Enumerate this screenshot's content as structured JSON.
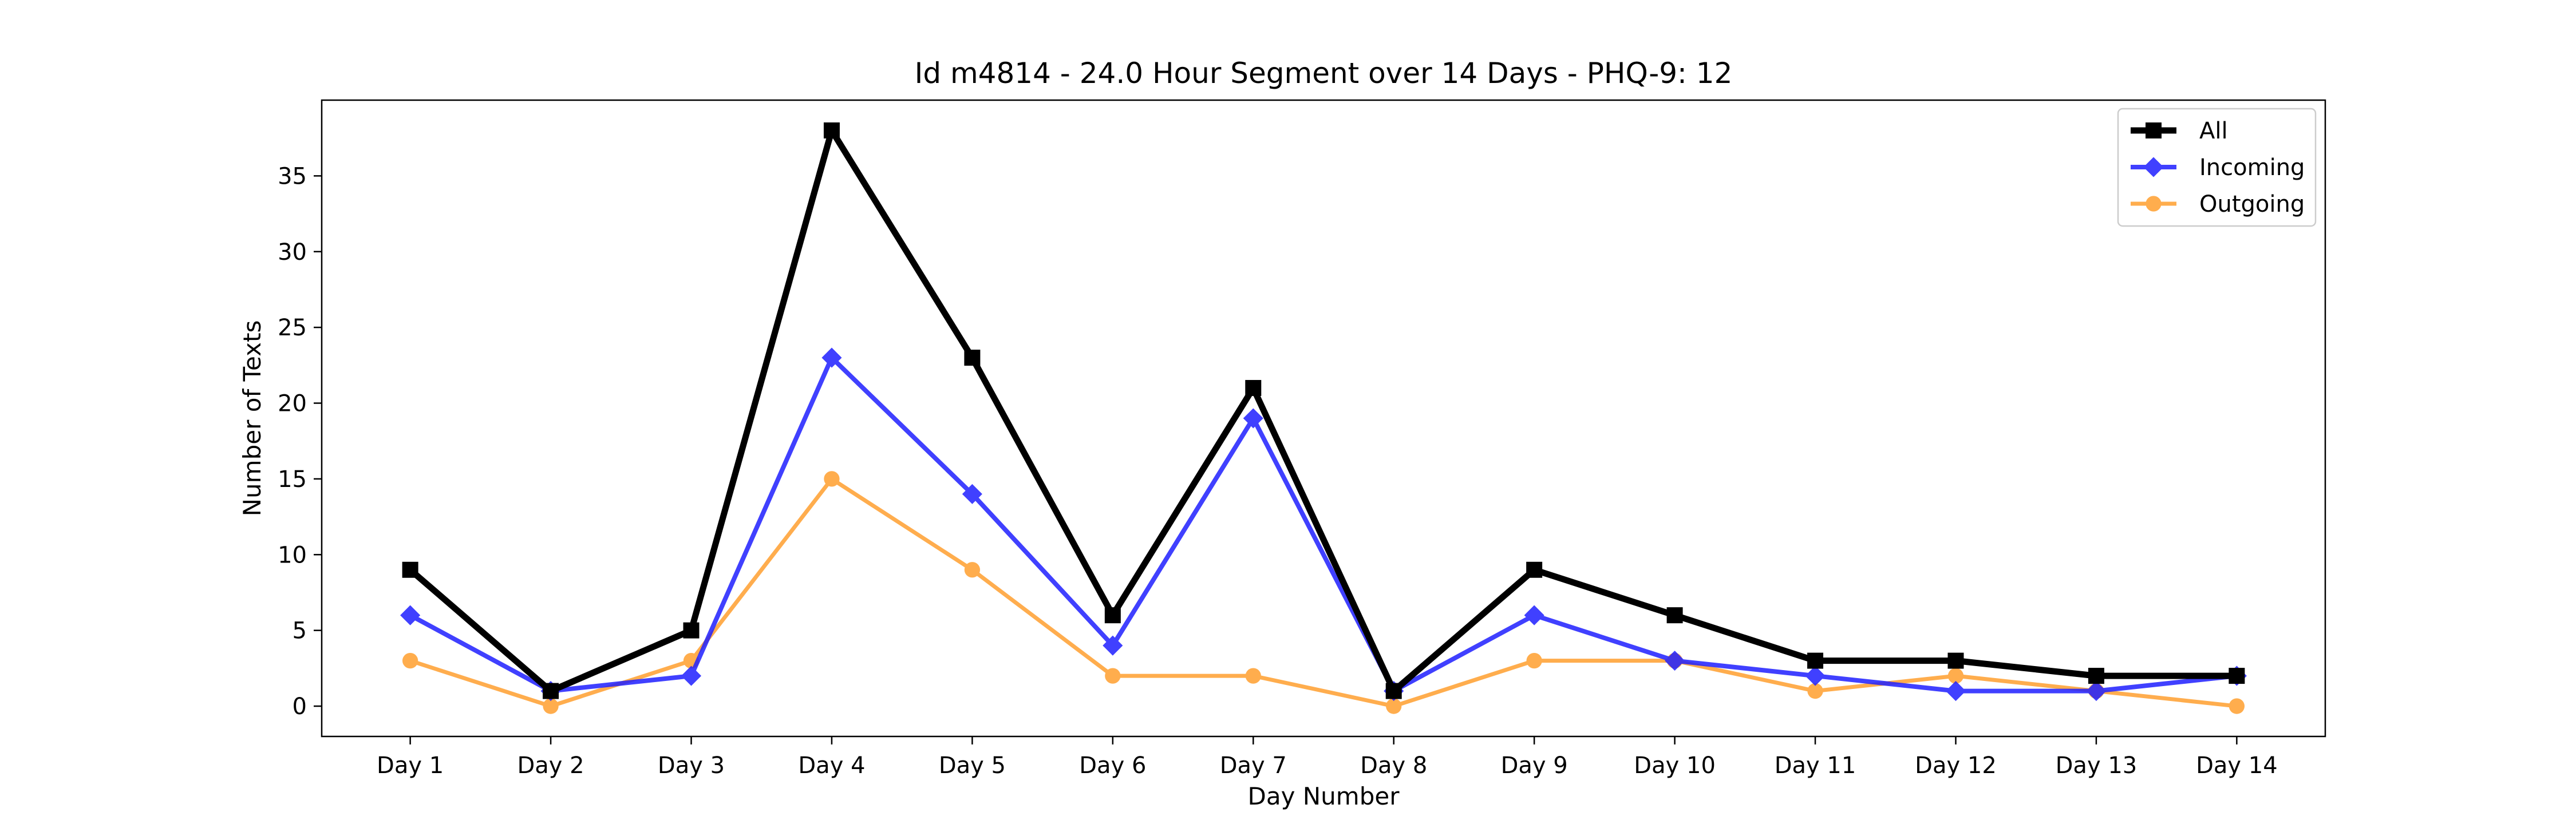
{
  "chart_data": {
    "type": "line",
    "title": "Id m4814 - 24.0 Hour Segment over 14 Days - PHQ-9: 12",
    "xlabel": "Day Number",
    "ylabel": "Number of Texts",
    "categories": [
      "Day 1",
      "Day 2",
      "Day 3",
      "Day 4",
      "Day 5",
      "Day 6",
      "Day 7",
      "Day 8",
      "Day 9",
      "Day 10",
      "Day 11",
      "Day 12",
      "Day 13",
      "Day 14"
    ],
    "ylim": [
      -2,
      40
    ],
    "yticks": [
      0,
      5,
      10,
      15,
      20,
      25,
      30,
      35
    ],
    "grid": false,
    "legend_position": "top-right",
    "series": [
      {
        "name": "All",
        "color": "#000000",
        "marker": "square",
        "values": [
          9,
          1,
          5,
          38,
          23,
          6,
          21,
          1,
          9,
          6,
          3,
          3,
          2,
          2
        ]
      },
      {
        "name": "Incoming",
        "color": "#1f1fff",
        "marker": "diamond",
        "values": [
          6,
          1,
          2,
          23,
          14,
          4,
          19,
          1,
          6,
          3,
          2,
          1,
          1,
          2
        ]
      },
      {
        "name": "Outgoing",
        "color": "#ff9f2f",
        "marker": "circle",
        "values": [
          3,
          0,
          3,
          15,
          9,
          2,
          2,
          0,
          3,
          3,
          1,
          2,
          1,
          0
        ]
      }
    ]
  }
}
